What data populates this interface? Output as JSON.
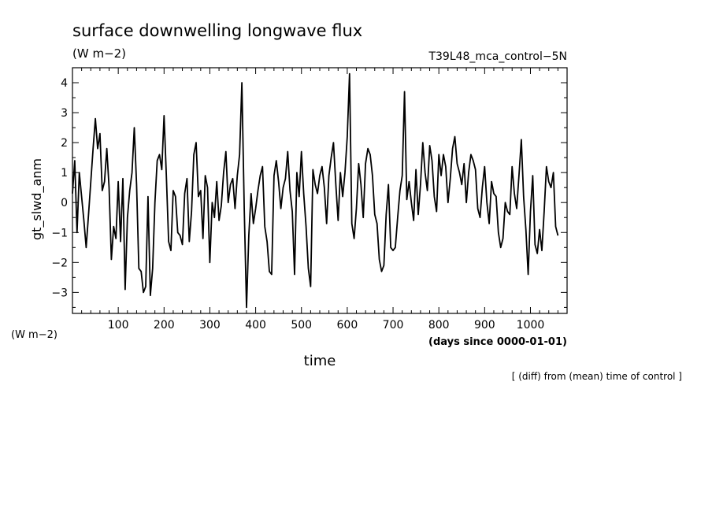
{
  "chart_data": {
    "type": "line",
    "title": "surface downwelling longwave flux",
    "units_top": "(W m−2)",
    "experiment": "T39L48_mca_control−5N",
    "ylabel": "gt_slwd_anm",
    "yunits": "(W m−2)",
    "xlabel": "time",
    "xunits": "(days since 0000-01-01)",
    "note": "[ (diff) from (mean) time of control ]",
    "xlim": [
      0,
      1080
    ],
    "ylim": [
      -3.7,
      4.5
    ],
    "x_ticks": [
      100,
      200,
      300,
      400,
      500,
      600,
      700,
      800,
      900,
      1000
    ],
    "x_tick_labels": [
      "100",
      "200",
      "300",
      "400",
      "500",
      "600",
      "700",
      "800",
      "900",
      "1000"
    ],
    "y_ticks": [
      -3,
      -2,
      -1,
      0,
      1,
      2,
      3,
      4
    ],
    "y_tick_labels": [
      "−3",
      "−2",
      "−1",
      "0",
      "1",
      "2",
      "3",
      "4"
    ],
    "grid": false,
    "line_color": "#000000",
    "series": [
      {
        "x_start": 0,
        "x_step": 5,
        "values": [
          0.3,
          1.4,
          -1.0,
          1.0,
          0.2,
          -0.6,
          -1.5,
          -0.4,
          0.7,
          1.8,
          2.8,
          1.8,
          2.3,
          0.4,
          0.7,
          1.8,
          0.5,
          -1.9,
          -0.8,
          -1.2,
          0.7,
          -1.3,
          0.8,
          -2.9,
          -0.5,
          0.4,
          1.0,
          2.5,
          0.6,
          -2.2,
          -2.3,
          -3.0,
          -2.8,
          0.2,
          -3.1,
          -2.2,
          0.0,
          1.4,
          1.6,
          1.1,
          2.9,
          0.9,
          -1.3,
          -1.6,
          0.4,
          0.2,
          -1.0,
          -1.1,
          -1.4,
          0.3,
          0.8,
          -1.3,
          -0.3,
          1.6,
          2.0,
          0.2,
          0.4,
          -1.2,
          0.9,
          0.5,
          -2.0,
          0.0,
          -0.5,
          0.7,
          -0.6,
          -0.1,
          1.0,
          1.7,
          0.0,
          0.6,
          0.8,
          -0.2,
          0.9,
          1.6,
          4.0,
          -0.2,
          -3.5,
          -1.1,
          0.3,
          -0.7,
          -0.2,
          0.4,
          0.9,
          1.2,
          -0.8,
          -1.3,
          -2.3,
          -2.4,
          0.9,
          1.4,
          0.7,
          -0.2,
          0.5,
          0.8,
          1.7,
          0.4,
          -0.3,
          -2.4,
          1.0,
          0.2,
          1.7,
          0.3,
          -0.8,
          -2.2,
          -2.8,
          1.1,
          0.6,
          0.3,
          0.9,
          1.2,
          0.5,
          -0.7,
          0.9,
          1.5,
          2.0,
          0.6,
          -0.6,
          1.0,
          0.2,
          1.0,
          2.2,
          4.3,
          -0.7,
          -1.2,
          -0.2,
          1.3,
          0.6,
          -0.5,
          1.3,
          1.8,
          1.6,
          0.9,
          -0.4,
          -0.7,
          -1.9,
          -2.3,
          -2.1,
          -0.4,
          0.6,
          -1.5,
          -1.6,
          -1.5,
          -0.5,
          0.4,
          0.9,
          3.7,
          0.1,
          0.7,
          0.0,
          -0.6,
          1.1,
          -0.4,
          0.6,
          2.0,
          1.0,
          0.4,
          1.9,
          1.4,
          0.2,
          -0.3,
          1.6,
          0.9,
          1.6,
          1.2,
          0.0,
          0.8,
          1.8,
          2.2,
          1.3,
          1.0,
          0.6,
          1.3,
          0.0,
          1.0,
          1.6,
          1.4,
          1.1,
          -0.2,
          -0.5,
          0.5,
          1.2,
          0.0,
          -0.7,
          0.7,
          0.3,
          0.2,
          -1.0,
          -1.5,
          -1.2,
          0.0,
          -0.3,
          -0.4,
          1.2,
          0.3,
          -0.2,
          0.9,
          2.1,
          0.2,
          -0.9,
          -2.4,
          -0.3,
          0.9,
          -1.4,
          -1.7,
          -0.9,
          -1.6,
          -0.3,
          1.2,
          0.7,
          0.5,
          1.0,
          -0.8,
          -1.1
        ]
      }
    ]
  }
}
